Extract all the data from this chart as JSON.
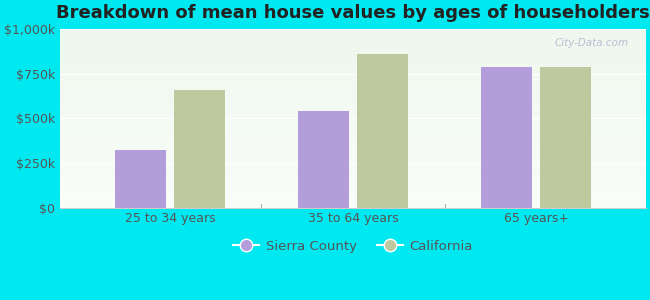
{
  "title": "Breakdown of mean house values by ages of householders",
  "categories": [
    "25 to 34 years",
    "35 to 64 years",
    "65 years+"
  ],
  "sierra_county": [
    320000,
    540000,
    790000
  ],
  "california": [
    660000,
    860000,
    790000
  ],
  "sierra_color": "#b39ddb",
  "california_color": "#bec9a0",
  "background_color": "#00e8f0",
  "plot_bg_top": "#e8f5e8",
  "plot_bg_bottom": "#f5fdf5",
  "ylim": [
    0,
    1000000
  ],
  "yticks": [
    0,
    250000,
    500000,
    750000,
    1000000
  ],
  "ytick_labels": [
    "$0",
    "$250k",
    "$500k",
    "$750k",
    "$1,000k"
  ],
  "legend_labels": [
    "Sierra County",
    "California"
  ],
  "bar_width": 0.28,
  "title_fontsize": 13,
  "tick_fontsize": 9,
  "legend_fontsize": 9.5,
  "tick_color": "#555555",
  "grid_color": "#d0e8d0",
  "watermark": "City-Data.com",
  "divider_color": "#aaaaaa"
}
